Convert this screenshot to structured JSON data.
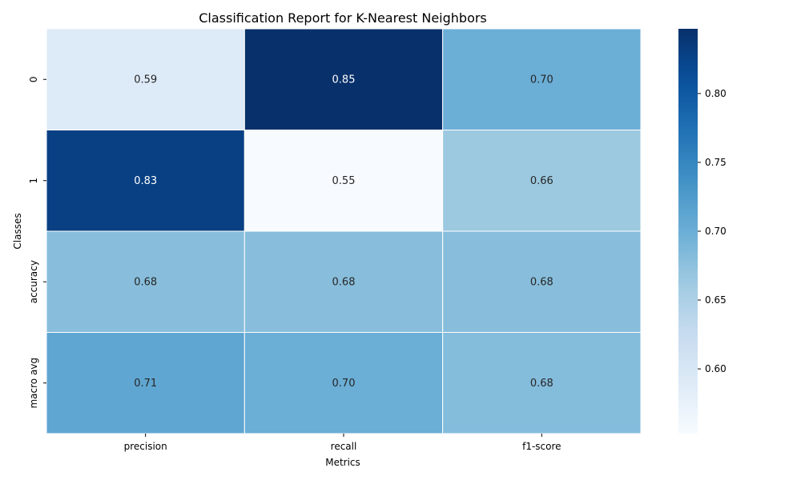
{
  "chart_data": {
    "type": "heatmap",
    "title": "Classification Report for K-Nearest Neighbors",
    "xlabel": "Metrics",
    "ylabel": "Classes",
    "x_categories": [
      "precision",
      "recall",
      "f1-score"
    ],
    "y_categories": [
      "0",
      "1",
      "accuracy",
      "macro avg"
    ],
    "values": [
      [
        0.59,
        0.85,
        0.7
      ],
      [
        0.83,
        0.55,
        0.66
      ],
      [
        0.68,
        0.68,
        0.68
      ],
      [
        0.71,
        0.7,
        0.68
      ]
    ],
    "cell_labels": [
      [
        "0.59",
        "0.85",
        "0.70"
      ],
      [
        "0.83",
        "0.55",
        "0.66"
      ],
      [
        "0.68",
        "0.68",
        "0.68"
      ],
      [
        "0.71",
        "0.70",
        "0.68"
      ]
    ],
    "raw_values": [
      [
        0.592,
        0.847,
        0.7
      ],
      [
        0.829,
        0.553,
        0.665
      ],
      [
        0.679,
        0.679,
        0.679
      ],
      [
        0.71,
        0.7,
        0.682
      ]
    ],
    "colormap": "Blues",
    "colorbar": {
      "vmin": 0.553,
      "vmax": 0.847,
      "ticks": [
        0.6,
        0.65,
        0.7,
        0.75,
        0.8
      ],
      "tick_labels": [
        "0.60",
        "0.65",
        "0.70",
        "0.75",
        "0.80"
      ]
    },
    "cell_border_color": "#ffffff",
    "grid": false
  }
}
